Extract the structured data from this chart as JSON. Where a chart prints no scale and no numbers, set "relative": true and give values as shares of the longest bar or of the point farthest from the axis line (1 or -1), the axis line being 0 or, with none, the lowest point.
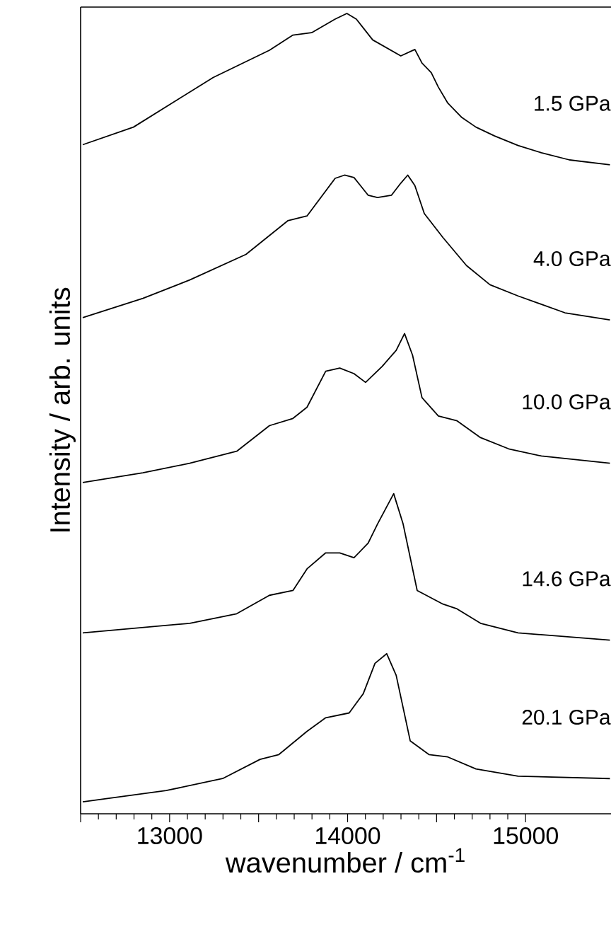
{
  "chart_data": {
    "type": "line",
    "relative": true,
    "xlabel": "wavenumber / cm$^{-1}$",
    "ylabel": "Intensity / arb. units",
    "xlim": [
      12500,
      15480
    ],
    "xticks": [
      {
        "value": 12500,
        "label": null
      },
      13000,
      {
        "value": 13500,
        "label": null
      },
      14000,
      {
        "value": 14500,
        "label": null
      },
      15000
    ],
    "series": [
      {
        "name": "1.5 GPa",
        "color": "#000000",
        "x": [
          12512,
          12797,
          13245,
          13561,
          13693,
          13798,
          13930,
          13996,
          14049,
          14141,
          14299,
          14378,
          14418,
          14470,
          14510,
          14563,
          14642,
          14721,
          14826,
          14958,
          15089,
          15247,
          15474
        ],
        "values": [
          0.836,
          0.858,
          0.92,
          0.954,
          0.973,
          0.976,
          0.993,
          1.0,
          0.993,
          0.967,
          0.947,
          0.955,
          0.938,
          0.926,
          0.908,
          0.888,
          0.87,
          0.858,
          0.847,
          0.835,
          0.826,
          0.817,
          0.811
        ]
      },
      {
        "name": "4.0 GPa",
        "color": "#000000",
        "x": [
          12512,
          12850,
          13113,
          13429,
          13664,
          13772,
          13930,
          13983,
          14036,
          14115,
          14168,
          14247,
          14299,
          14338,
          14378,
          14431,
          14536,
          14668,
          14800,
          14958,
          15221,
          15474
        ],
        "values": [
          0.62,
          0.644,
          0.667,
          0.699,
          0.741,
          0.747,
          0.794,
          0.798,
          0.795,
          0.773,
          0.77,
          0.773,
          0.788,
          0.798,
          0.785,
          0.75,
          0.72,
          0.685,
          0.661,
          0.647,
          0.626,
          0.617
        ]
      },
      {
        "name": "10.0 GPa",
        "color": "#000000",
        "x": [
          12512,
          12850,
          13113,
          13377,
          13561,
          13693,
          13772,
          13877,
          13956,
          14036,
          14101,
          14194,
          14273,
          14320,
          14365,
          14418,
          14510,
          14615,
          14747,
          14905,
          15089,
          15474
        ],
        "values": [
          0.414,
          0.426,
          0.438,
          0.453,
          0.485,
          0.494,
          0.508,
          0.553,
          0.557,
          0.55,
          0.539,
          0.559,
          0.579,
          0.6,
          0.573,
          0.52,
          0.497,
          0.491,
          0.47,
          0.456,
          0.447,
          0.438
        ]
      },
      {
        "name": "14.6 GPa",
        "color": "#000000",
        "x": [
          12512,
          13113,
          13377,
          13561,
          13693,
          13772,
          13877,
          13956,
          14036,
          14115,
          14168,
          14259,
          14312,
          14391,
          14536,
          14615,
          14747,
          14958,
          15474
        ],
        "values": [
          0.226,
          0.238,
          0.25,
          0.273,
          0.279,
          0.306,
          0.326,
          0.326,
          0.32,
          0.338,
          0.362,
          0.4,
          0.362,
          0.279,
          0.262,
          0.256,
          0.238,
          0.226,
          0.217
        ]
      },
      {
        "name": "20.1 GPa",
        "color": "#000000",
        "x": [
          12512,
          12981,
          13298,
          13508,
          13614,
          13772,
          13877,
          14009,
          14088,
          14154,
          14220,
          14273,
          14352,
          14457,
          14563,
          14721,
          14958,
          15474
        ],
        "values": [
          0.015,
          0.029,
          0.044,
          0.068,
          0.074,
          0.103,
          0.12,
          0.126,
          0.15,
          0.188,
          0.2,
          0.173,
          0.091,
          0.074,
          0.071,
          0.056,
          0.047,
          0.044
        ]
      }
    ]
  }
}
